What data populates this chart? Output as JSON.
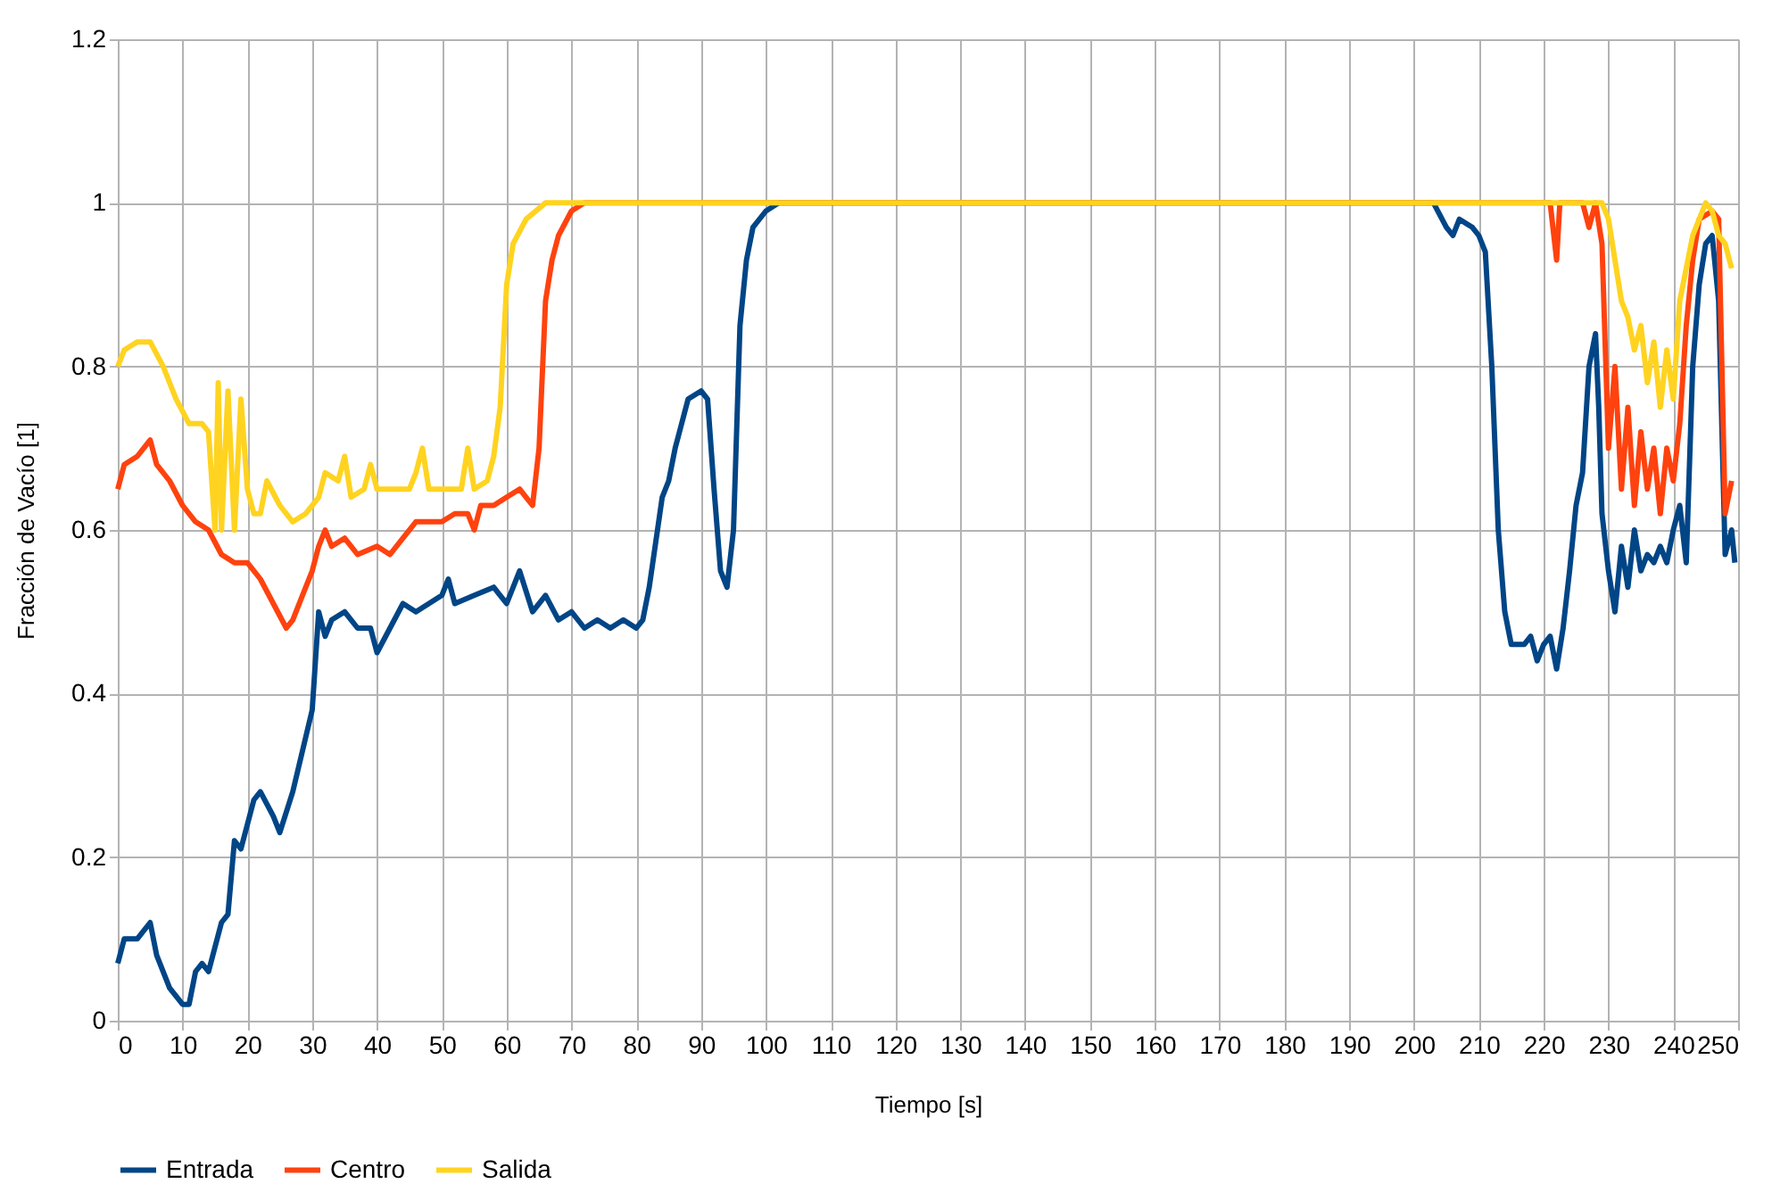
{
  "chart_data": {
    "type": "line",
    "xlabel": "Tiempo [s]",
    "ylabel": "Fracción de Vacío [1]",
    "xlim": [
      0,
      250
    ],
    "xticks": [
      0,
      10,
      20,
      30,
      40,
      50,
      60,
      70,
      80,
      90,
      100,
      110,
      120,
      130,
      140,
      150,
      160,
      170,
      180,
      190,
      200,
      210,
      220,
      230,
      240,
      250
    ],
    "ylim": [
      0,
      1.2
    ],
    "yticks": [
      0,
      0.2,
      0.4,
      0.6,
      0.8,
      1,
      1.2
    ],
    "grid": true,
    "legend": "bottom",
    "marker": "none",
    "line_style": "solid",
    "series": [
      {
        "name": "Entrada",
        "color": "#004586",
        "x": [
          0,
          1,
          3,
          5,
          6,
          8,
          10,
          11,
          12,
          13,
          14,
          16,
          17,
          18,
          19,
          21,
          22,
          24,
          25,
          27,
          30,
          31,
          32,
          33,
          35,
          37,
          39,
          40,
          42,
          44,
          46,
          48,
          50,
          51,
          52,
          55,
          58,
          59,
          60,
          62,
          64,
          66,
          68,
          70,
          72,
          74,
          76,
          78,
          80,
          81,
          82,
          84,
          85,
          86,
          88,
          90,
          91,
          92,
          93,
          94,
          95,
          96,
          97,
          98,
          100,
          102,
          203,
          205,
          206,
          207,
          209,
          210,
          211,
          212,
          213,
          214,
          215,
          217,
          218,
          219,
          220,
          221,
          222,
          223,
          224,
          225,
          226,
          227,
          228,
          228.5,
          229,
          230,
          231,
          232,
          233,
          234,
          235,
          236,
          237,
          238,
          239,
          240,
          241,
          242,
          243,
          244,
          245,
          246,
          247,
          248,
          249,
          249.5
        ],
        "values": [
          0.07,
          0.1,
          0.1,
          0.12,
          0.08,
          0.04,
          0.02,
          0.02,
          0.06,
          0.07,
          0.06,
          0.12,
          0.13,
          0.22,
          0.21,
          0.27,
          0.28,
          0.25,
          0.23,
          0.28,
          0.38,
          0.5,
          0.47,
          0.49,
          0.5,
          0.48,
          0.48,
          0.45,
          0.48,
          0.51,
          0.5,
          0.51,
          0.52,
          0.54,
          0.51,
          0.52,
          0.53,
          0.52,
          0.51,
          0.55,
          0.5,
          0.52,
          0.49,
          0.5,
          0.48,
          0.49,
          0.48,
          0.49,
          0.48,
          0.49,
          0.53,
          0.64,
          0.66,
          0.7,
          0.76,
          0.77,
          0.76,
          0.65,
          0.55,
          0.53,
          0.6,
          0.85,
          0.93,
          0.97,
          0.99,
          1,
          1,
          0.97,
          0.96,
          0.98,
          0.97,
          0.96,
          0.94,
          0.8,
          0.6,
          0.5,
          0.46,
          0.46,
          0.47,
          0.44,
          0.46,
          0.47,
          0.43,
          0.48,
          0.55,
          0.63,
          0.67,
          0.8,
          0.84,
          0.75,
          0.62,
          0.55,
          0.5,
          0.58,
          0.53,
          0.6,
          0.55,
          0.57,
          0.56,
          0.58,
          0.56,
          0.6,
          0.63,
          0.56,
          0.8,
          0.9,
          0.95,
          0.96,
          0.88,
          0.57,
          0.6,
          0.56
        ]
      },
      {
        "name": "Centro",
        "color": "#ff420e",
        "x": [
          0,
          1,
          3,
          5,
          6,
          8,
          10,
          12,
          14,
          16,
          18,
          20,
          22,
          24,
          26,
          27,
          29,
          30,
          31,
          32,
          33,
          35,
          37,
          40,
          42,
          44,
          46,
          48,
          50,
          52,
          54,
          55,
          56,
          58,
          60,
          62,
          63,
          64,
          65,
          66,
          67,
          68,
          70,
          72,
          221,
          222,
          222.5,
          226,
          227,
          228,
          229,
          230,
          231,
          232,
          233,
          234,
          235,
          236,
          237,
          238,
          239,
          240,
          241,
          242,
          243,
          244,
          246,
          247,
          248,
          249
        ],
        "values": [
          0.65,
          0.68,
          0.69,
          0.71,
          0.68,
          0.66,
          0.63,
          0.61,
          0.6,
          0.57,
          0.56,
          0.56,
          0.54,
          0.51,
          0.48,
          0.49,
          0.53,
          0.55,
          0.58,
          0.6,
          0.58,
          0.59,
          0.57,
          0.58,
          0.57,
          0.59,
          0.61,
          0.61,
          0.61,
          0.62,
          0.62,
          0.6,
          0.63,
          0.63,
          0.64,
          0.65,
          0.64,
          0.63,
          0.7,
          0.88,
          0.93,
          0.96,
          0.99,
          1,
          1,
          0.93,
          1,
          1,
          0.97,
          1,
          0.95,
          0.7,
          0.8,
          0.65,
          0.75,
          0.63,
          0.72,
          0.65,
          0.7,
          0.62,
          0.7,
          0.66,
          0.73,
          0.85,
          0.93,
          0.98,
          0.99,
          0.98,
          0.62,
          0.66
        ]
      },
      {
        "name": "Salida",
        "color": "#ffd320",
        "x": [
          0,
          1,
          3,
          5,
          7,
          9,
          11,
          13,
          14,
          15,
          15.5,
          16,
          17,
          18,
          19,
          20,
          21,
          22,
          23,
          25,
          27,
          29,
          31,
          32,
          34,
          35,
          36,
          38,
          39,
          40,
          43,
          45,
          46,
          47,
          48,
          51,
          53,
          54,
          55,
          57,
          58,
          59,
          60,
          61,
          63,
          66,
          229,
          230,
          231,
          232,
          233,
          234,
          235,
          236,
          237,
          238,
          239,
          240,
          241,
          243,
          245,
          246,
          247,
          248,
          249
        ],
        "values": [
          0.8,
          0.82,
          0.83,
          0.83,
          0.8,
          0.76,
          0.73,
          0.73,
          0.72,
          0.6,
          0.78,
          0.6,
          0.77,
          0.6,
          0.76,
          0.65,
          0.62,
          0.62,
          0.66,
          0.63,
          0.61,
          0.62,
          0.64,
          0.67,
          0.66,
          0.69,
          0.64,
          0.65,
          0.68,
          0.65,
          0.65,
          0.65,
          0.67,
          0.7,
          0.65,
          0.65,
          0.65,
          0.7,
          0.65,
          0.66,
          0.69,
          0.75,
          0.9,
          0.95,
          0.98,
          1,
          1,
          0.98,
          0.93,
          0.88,
          0.86,
          0.82,
          0.85,
          0.78,
          0.83,
          0.75,
          0.82,
          0.76,
          0.88,
          0.96,
          1,
          0.99,
          0.96,
          0.95,
          0.92
        ]
      }
    ]
  }
}
